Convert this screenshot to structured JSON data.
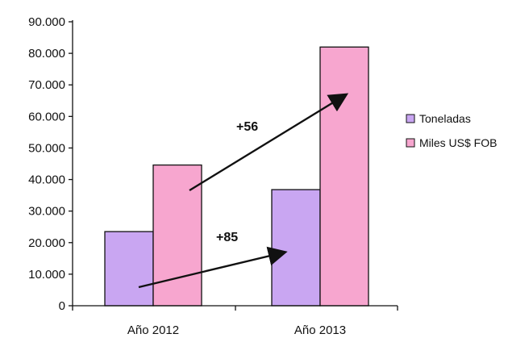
{
  "chart_data": {
    "type": "bar",
    "categories": [
      "Año 2012",
      "Año 2013"
    ],
    "series": [
      {
        "name": "Toneladas",
        "values": [
          23500,
          36800
        ],
        "color": "#c9a6f2"
      },
      {
        "name": "Miles US$ FOB",
        "values": [
          44600,
          82000
        ],
        "color": "#f7a6cf"
      }
    ],
    "ylim": [
      0,
      90000
    ],
    "y_ticks": [
      0,
      10000,
      20000,
      30000,
      40000,
      50000,
      60000,
      70000,
      80000,
      90000
    ],
    "y_tick_labels": [
      "0",
      "10.000",
      "20.000",
      "30.000",
      "40.000",
      "50.000",
      "60.000",
      "70.000",
      "80.000",
      "90.000"
    ],
    "grid": false,
    "legend_position": "right",
    "title": "",
    "xlabel": "",
    "ylabel": "",
    "annotations": [
      {
        "text": "+56"
      },
      {
        "text": "+85"
      }
    ]
  }
}
